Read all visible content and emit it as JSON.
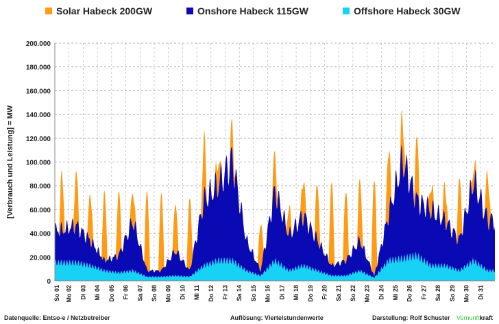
{
  "legend": [
    {
      "label": "Solar Habeck 200GW",
      "color": "#ff9a12"
    },
    {
      "label": "Onshore Habeck 115GW",
      "color": "#0a0ab4"
    },
    {
      "label": "Offshore Habeck 30GW",
      "color": "#18d2f5"
    }
  ],
  "footer": {
    "source": "Datenquelle: Entso-e  / Netzbetreiber",
    "resolution": "Auflösung: Viertelstundenwerte",
    "author": "Darstellung:  Rolf Schuster",
    "brand_green": "Vernunft",
    "brand_black": "kraft"
  },
  "chart_data": {
    "type": "area",
    "stacked": true,
    "ylabel": "[Verbrauch und Leistung] =  MW",
    "ylim": [
      0,
      200000
    ],
    "yticks": [
      "0",
      "20.000",
      "40.000",
      "60.000",
      "80.000",
      "100.000",
      "120.000",
      "140.000",
      "160.000",
      "180.000",
      "200.000"
    ],
    "categories": [
      "So 01",
      "Mo 02",
      "Di 03",
      "Mi 04",
      "Do 05",
      "Fr 06",
      "Sa 07",
      "So 08",
      "Mo 09",
      "Di 10",
      "Mi 11",
      "Do 12",
      "Fr 13",
      "Sa 14",
      "So 15",
      "Mo 16",
      "Di 17",
      "Mi 18",
      "Do 19",
      "Fr 20",
      "Sa 21",
      "So 22",
      "Mo 23",
      "Di 24",
      "Mi 25",
      "Do 26",
      "Fr 27",
      "Sa 28",
      "So 29",
      "Mo 30",
      "Di 31"
    ],
    "grid": true,
    "legend_position": "top",
    "series": [
      {
        "name": "Offshore Habeck 30GW",
        "daily_mw": [
          18000,
          18000,
          15000,
          10000,
          8000,
          10000,
          4000,
          4000,
          5000,
          4000,
          15000,
          20000,
          20000,
          10000,
          5000,
          20000,
          10000,
          15000,
          10000,
          5000,
          5000,
          10000,
          3000,
          20000,
          22000,
          25000,
          15000,
          15000,
          10000,
          20000,
          10000
        ]
      },
      {
        "name": "Onshore Habeck 115GW",
        "daily_mw": [
          32000,
          37000,
          25000,
          10000,
          17000,
          50000,
          6000,
          6000,
          25000,
          6000,
          65000,
          75000,
          100000,
          30000,
          5000,
          70000,
          35000,
          50000,
          30000,
          10000,
          15000,
          30000,
          2000,
          45000,
          98000,
          55000,
          55000,
          45000,
          30000,
          80000,
          50000
        ]
      },
      {
        "name": "Solar Habeck 200GW",
        "daily_peak_mw": [
          45000,
          45000,
          40000,
          57000,
          53000,
          28000,
          66000,
          65000,
          42000,
          60000,
          50000,
          23000,
          25000,
          0,
          38000,
          30000,
          20000,
          33000,
          46000,
          70000,
          60000,
          52000,
          80000,
          57000,
          35000,
          48000,
          22000,
          28000,
          48000,
          15000,
          38000
        ]
      }
    ]
  }
}
